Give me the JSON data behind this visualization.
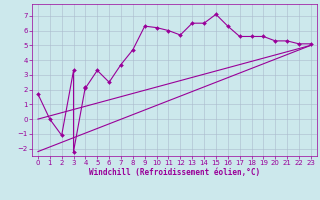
{
  "xlabel": "Windchill (Refroidissement éolien,°C)",
  "bg_color": "#cce8ec",
  "line_color": "#990099",
  "grid_color": "#aabbcc",
  "xlim": [
    -0.5,
    23.5
  ],
  "ylim": [
    -2.5,
    7.8
  ],
  "yticks": [
    -2,
    -1,
    0,
    1,
    2,
    3,
    4,
    5,
    6,
    7
  ],
  "xticks": [
    0,
    1,
    2,
    3,
    4,
    5,
    6,
    7,
    8,
    9,
    10,
    11,
    12,
    13,
    14,
    15,
    16,
    17,
    18,
    19,
    20,
    21,
    22,
    23
  ],
  "line1_x": [
    0,
    1,
    2,
    3,
    3,
    4,
    4,
    5,
    6,
    7,
    8,
    9,
    10,
    11,
    12,
    13,
    14,
    15,
    16,
    17,
    18,
    19,
    20,
    21,
    22,
    23
  ],
  "line1_y": [
    1.7,
    0.0,
    -1.1,
    3.3,
    -2.2,
    2.2,
    2.1,
    3.3,
    2.5,
    3.7,
    4.7,
    6.3,
    6.2,
    6.0,
    5.7,
    6.5,
    6.5,
    7.1,
    6.3,
    5.6,
    5.6,
    5.6,
    5.3,
    5.3,
    5.1,
    5.1
  ],
  "line2_x": [
    0,
    23
  ],
  "line2_y": [
    -2.2,
    5.0
  ],
  "line3_x": [
    0,
    23
  ],
  "line3_y": [
    0.0,
    5.0
  ],
  "tick_fontsize": 5,
  "xlabel_fontsize": 5.5,
  "marker_size": 2.0,
  "line_width": 0.8
}
